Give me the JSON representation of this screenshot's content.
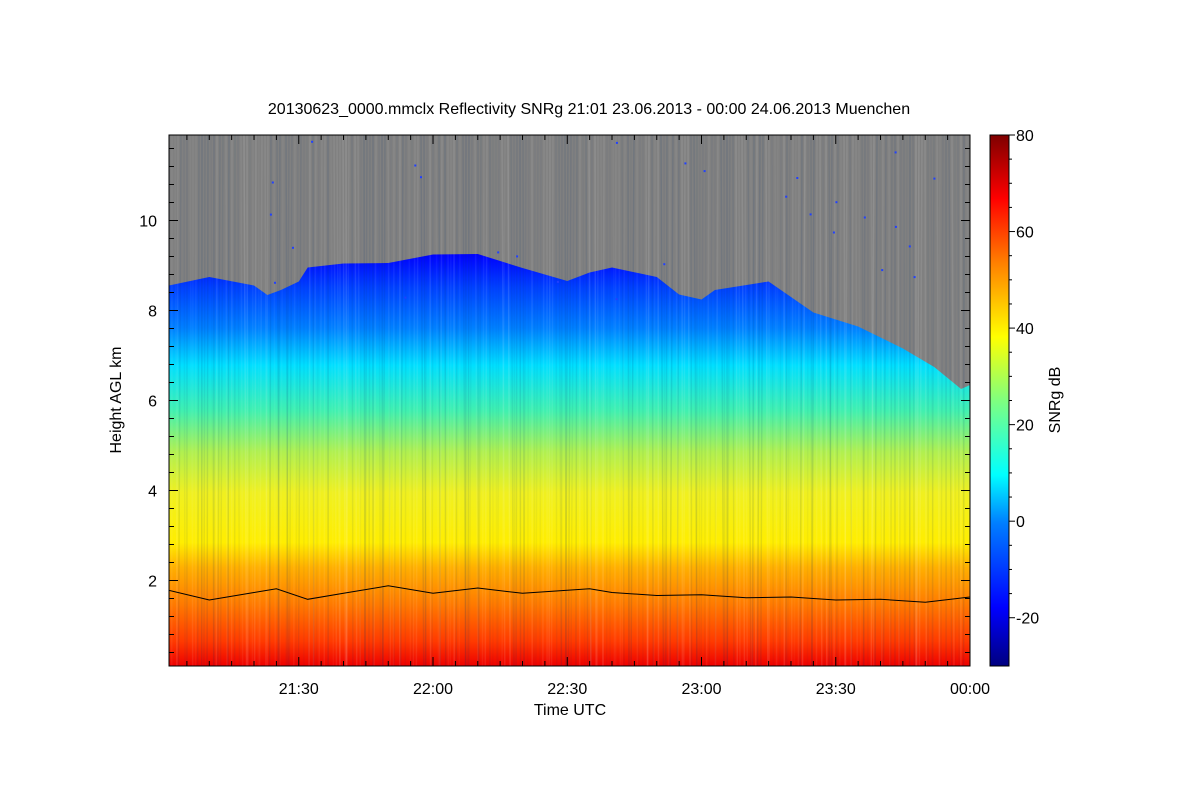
{
  "chart_data": {
    "type": "heatmap",
    "title": "20130623_0000.mmclx Reflectivity SNRg   21:01 23.06.2013 - 00:00 24.06.2013 Muenchen",
    "xlabel": "Time UTC",
    "ylabel": "Height AGL km",
    "colorbar_label": "SNRg dB",
    "x_range": [
      "21:01",
      "00:00"
    ],
    "y_range_km": [
      0.1,
      11.9
    ],
    "x_ticks": [
      "21:30",
      "22:00",
      "22:30",
      "23:00",
      "23:30",
      "00:00"
    ],
    "y_ticks": [
      "2",
      "4",
      "6",
      "8",
      "10"
    ],
    "colorbar_range": [
      -30,
      80
    ],
    "colorbar_ticks": [
      "-20",
      "0",
      "20",
      "40",
      "60",
      "80"
    ],
    "colormap": [
      "#00007f",
      "#0000ff",
      "#007fff",
      "#00ffff",
      "#7fff7f",
      "#ffff00",
      "#ff7f00",
      "#ff0000",
      "#7f0000"
    ],
    "no_signal_color": "#808080",
    "cloud_top_km": [
      {
        "t": "21:01",
        "h": 8.6
      },
      {
        "t": "21:10",
        "h": 8.7
      },
      {
        "t": "21:20",
        "h": 8.6
      },
      {
        "t": "21:23",
        "h": 8.3
      },
      {
        "t": "21:26",
        "h": 8.5
      },
      {
        "t": "21:30",
        "h": 8.6
      },
      {
        "t": "21:32",
        "h": 9.0
      },
      {
        "t": "21:40",
        "h": 9.0
      },
      {
        "t": "21:50",
        "h": 9.1
      },
      {
        "t": "22:00",
        "h": 9.2
      },
      {
        "t": "22:10",
        "h": 9.3
      },
      {
        "t": "22:20",
        "h": 8.9
      },
      {
        "t": "22:30",
        "h": 8.7
      },
      {
        "t": "22:35",
        "h": 8.8
      },
      {
        "t": "22:40",
        "h": 9.0
      },
      {
        "t": "22:50",
        "h": 8.7
      },
      {
        "t": "22:55",
        "h": 8.4
      },
      {
        "t": "23:00",
        "h": 8.2
      },
      {
        "t": "23:03",
        "h": 8.5
      },
      {
        "t": "23:15",
        "h": 8.6
      },
      {
        "t": "23:25",
        "h": 8.0
      },
      {
        "t": "23:35",
        "h": 7.6
      },
      {
        "t": "23:45",
        "h": 7.2
      },
      {
        "t": "23:52",
        "h": 6.7
      },
      {
        "t": "23:58",
        "h": 6.3
      },
      {
        "t": "00:00",
        "h": 6.3
      }
    ],
    "boundary_line_km": [
      {
        "t": "21:01",
        "h": 1.75
      },
      {
        "t": "21:10",
        "h": 1.6
      },
      {
        "t": "21:20",
        "h": 1.7
      },
      {
        "t": "21:25",
        "h": 1.85
      },
      {
        "t": "21:32",
        "h": 1.55
      },
      {
        "t": "21:40",
        "h": 1.75
      },
      {
        "t": "21:50",
        "h": 1.85
      },
      {
        "t": "22:00",
        "h": 1.75
      },
      {
        "t": "22:10",
        "h": 1.8
      },
      {
        "t": "22:20",
        "h": 1.75
      },
      {
        "t": "22:30",
        "h": 1.75
      },
      {
        "t": "22:35",
        "h": 1.85
      },
      {
        "t": "22:40",
        "h": 1.7
      },
      {
        "t": "22:50",
        "h": 1.7
      },
      {
        "t": "23:00",
        "h": 1.65
      },
      {
        "t": "23:10",
        "h": 1.65
      },
      {
        "t": "23:20",
        "h": 1.6
      },
      {
        "t": "23:30",
        "h": 1.6
      },
      {
        "t": "23:40",
        "h": 1.55
      },
      {
        "t": "23:50",
        "h": 1.55
      },
      {
        "t": "00:00",
        "h": 1.6
      }
    ]
  }
}
